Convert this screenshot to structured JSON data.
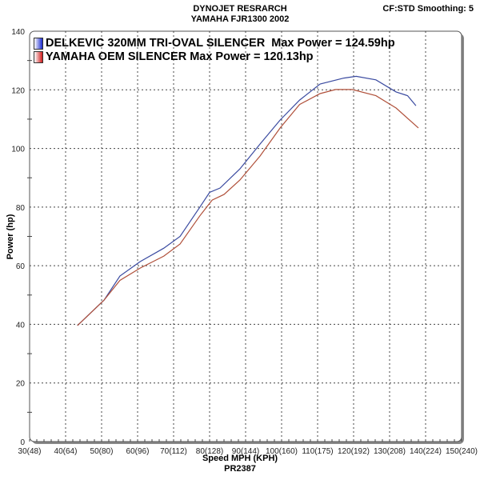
{
  "chart_data": {
    "type": "line",
    "title": "DYNOJET RESRARCH",
    "subtitle": "YAMAHA FJR1300 2002",
    "corner_note": "CF:STD Smoothing: 5",
    "xlabel": "Speed MPH (KPH)",
    "footer": "PR2387",
    "ylabel": "Power (hp)",
    "xlim": [
      30,
      150
    ],
    "ylim": [
      0,
      140
    ],
    "grid": true,
    "legend_position": "top-left",
    "x_tick_values": [
      30,
      40,
      50,
      60,
      70,
      80,
      90,
      100,
      110,
      120,
      130,
      140,
      150
    ],
    "x_tick_labels": [
      "30(48)",
      "40(64)",
      "50(80)",
      "60(96)",
      "70(112)",
      "80(128)",
      "90(144)",
      "100(160)",
      "110(175)",
      "120(192)",
      "130(208)",
      "140(224)",
      "150(240)"
    ],
    "y_tick_values": [
      0,
      20,
      40,
      60,
      80,
      100,
      120,
      140
    ],
    "y_tick_labels": [
      "0",
      "20",
      "40",
      "60",
      "80",
      "100",
      "120",
      "140"
    ],
    "series": [
      {
        "name": "DELKEVIC 320MM TRI-OVAL SILENCER  Max Power = 124.59hp",
        "color": "#3a4aa0",
        "x": [
          43.3,
          50.7,
          55.1,
          60.7,
          67.3,
          71.8,
          77.3,
          80,
          82.9,
          88.4,
          94,
          99.6,
          105,
          110.7,
          117.3,
          120.7,
          126.2,
          131.8,
          135,
          137.3
        ],
        "y": [
          39.6,
          48.3,
          56.5,
          61.4,
          66,
          70,
          80,
          85,
          86.5,
          93,
          101.5,
          109.7,
          116.5,
          122,
          124,
          124.6,
          123.4,
          119.3,
          118,
          114.6
        ]
      },
      {
        "name": "YAMAHA OEM SILENCER Max Power = 120.13hp",
        "color": "#b0503a",
        "x": [
          43.3,
          50.7,
          55.1,
          60.7,
          67.3,
          71.8,
          77.3,
          80.7,
          84,
          88.4,
          94,
          99.6,
          105,
          110.7,
          115,
          119.6,
          126.2,
          131.8,
          138
        ],
        "y": [
          39.6,
          48.3,
          55,
          59.2,
          63.3,
          67.4,
          77,
          82.4,
          84.3,
          89.2,
          97.4,
          107,
          115,
          118.7,
          120.1,
          120.1,
          118,
          113.8,
          107
        ]
      }
    ]
  }
}
